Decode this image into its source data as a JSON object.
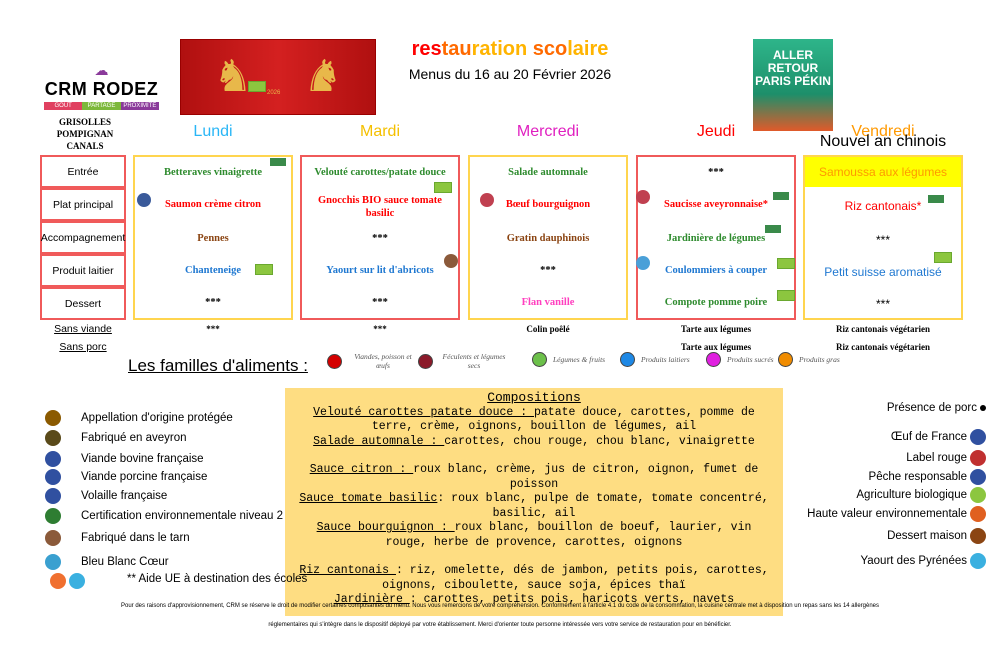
{
  "header": {
    "logo": {
      "name": "CRM RODEZ",
      "tags": [
        "GOUT",
        "PARTAGE",
        "PROXIMITÉ"
      ]
    },
    "title_parts": [
      {
        "t": "res",
        "c": "#ff0000"
      },
      {
        "t": "tau",
        "c": "#ff6a00"
      },
      {
        "t": "ration",
        "c": "#ffb400"
      },
      {
        "t": " ",
        "c": "#000"
      },
      {
        "t": "sco",
        "c": "#ff6a00"
      },
      {
        "t": "laire",
        "c": "#ffb400"
      }
    ],
    "subtitle": "Menus du 16 au 20 Février 2026",
    "banner_year": "2026",
    "poster_text": "ALLER RETOUR PARIS PÉKIN",
    "towns": [
      "GRISOLLES",
      "POMPIGNAN",
      "CANALS"
    ]
  },
  "rows": [
    "Entrée",
    "Plat principal",
    "Accompagnement",
    "Produit laitier",
    "Dessert"
  ],
  "alt_rows": [
    "Sans viande",
    "Sans porc"
  ],
  "days": [
    {
      "name": "Lundi",
      "color": "#29b6f6",
      "border": "#ffd54f",
      "items": [
        {
          "text": "Betteraves vinaigrette",
          "color": "#2e8b2e"
        },
        {
          "text": "Saumon crème citron",
          "color": "#ff0000"
        },
        {
          "text": "Pennes",
          "color": "#8b4513"
        },
        {
          "text": "Chanteneige",
          "color": "#1f78d1"
        },
        {
          "text": "***",
          "color": "#000"
        }
      ],
      "alt": [
        "***",
        ""
      ]
    },
    {
      "name": "Mardi",
      "color": "#f5c000",
      "border": "#f05a5a",
      "items": [
        {
          "text": "Velouté carottes/patate douce",
          "color": "#2e8b2e"
        },
        {
          "text": "Gnocchis BIO sauce tomate basilic",
          "color": "#ff0000"
        },
        {
          "text": "***",
          "color": "#000"
        },
        {
          "text": "Yaourt sur lit d'abricots",
          "color": "#1f78d1"
        },
        {
          "text": "***",
          "color": "#000"
        }
      ],
      "alt": [
        "***",
        ""
      ]
    },
    {
      "name": "Mercredi",
      "color": "#e020c0",
      "border": "#ffd54f",
      "items": [
        {
          "text": "Salade automnale",
          "color": "#2e8b2e"
        },
        {
          "text": "Bœuf bourguignon",
          "color": "#ff0000"
        },
        {
          "text": "Gratin dauphinois",
          "color": "#8b4513"
        },
        {
          "text": "***",
          "color": "#000"
        },
        {
          "text": "Flan vanille",
          "color": "#ff3fbf"
        }
      ],
      "alt": [
        "Colin poêlé",
        ""
      ]
    },
    {
      "name": "Jeudi",
      "color": "#ff0000",
      "border": "#f05a5a",
      "items": [
        {
          "text": "***",
          "color": "#000"
        },
        {
          "text": "Saucisse aveyronnaise*",
          "color": "#ff0000"
        },
        {
          "text": "Jardinière de légumes",
          "color": "#2e8b2e"
        },
        {
          "text": "Coulommiers à couper",
          "color": "#1f78d1"
        },
        {
          "text": "Compote pomme poire",
          "color": "#2e8b2e"
        }
      ],
      "alt": [
        "Tarte aux légumes",
        "Tarte aux légumes"
      ]
    },
    {
      "name": "Vendredi",
      "subtitle": "Nouvel an chinois",
      "color": "#ff9900",
      "border": "#ffd54f",
      "items": [
        {
          "text": "Samoussa aux légumes",
          "color": "#ff9900"
        },
        {
          "text": "Riz cantonais*",
          "color": "#ff0000"
        },
        {
          "text": "***",
          "color": "#000"
        },
        {
          "text": "Petit suisse aromatisé",
          "color": "#1f78d1"
        },
        {
          "text": "***",
          "color": "#000"
        }
      ],
      "alt": [
        "Riz cantonais végétarien",
        "Riz cantonais végétarien"
      ]
    }
  ],
  "families": {
    "title": "Les familles d'aliments :",
    "items": [
      {
        "label": "Viandes, poisson et œufs",
        "color": "#d40000"
      },
      {
        "label": "Féculents et légumes secs",
        "color": "#8b1a2a"
      },
      {
        "label": "Légumes & fruits",
        "color": "#6cc04a"
      },
      {
        "label": "Produits laitiers",
        "color": "#1e88e5"
      },
      {
        "label": "Produits sucrés",
        "color": "#e020e0"
      },
      {
        "label": "Produits gras",
        "color": "#f08c00"
      }
    ]
  },
  "compositions": {
    "title": "Compositions",
    "items": [
      {
        "name": "Velouté carottes patate douce : ",
        "desc": "patate douce, carottes, pomme de terre, crème, oignons, bouillon de légumes, ail"
      },
      {
        "name": "Salade automnale : ",
        "desc": "carottes, chou rouge, chou blanc, vinaigrette"
      },
      {
        "name": "Sauce citron : ",
        "desc": "roux blanc, crème, jus de citron, oignon, fumet de poisson",
        "gap": true
      },
      {
        "name": "Sauce tomate basilic",
        "desc": ": roux blanc, pulpe de tomate, tomate concentré, basilic, ail"
      },
      {
        "name": "Sauce bourguignon : ",
        "desc": "roux blanc, bouillon de boeuf, laurier, vin rouge, herbe de provence, carottes, oignons"
      },
      {
        "name": "Riz cantonais ",
        "desc": ": riz, omelette, dés de jambon,  petits pois, carottes, oignons, ciboulette, sauce soja, épices thaï",
        "gap": true
      },
      {
        "name": "Jardinière ",
        "desc": ": carottes, petits pois, haricots verts, navets"
      }
    ]
  },
  "legend_left": [
    {
      "label": "Appellation d'origine protégée",
      "icon": "aop-icon",
      "color": "#8b5a00"
    },
    {
      "label": "Fabriqué en aveyron",
      "icon": "aveyron-icon",
      "color": "#5a4a1a"
    },
    {
      "label": "Viande bovine française",
      "icon": "viande-bovine-icon",
      "color": "#3050a0"
    },
    {
      "label": "Viande porcine française",
      "icon": "viande-porcine-icon",
      "color": "#3050a0"
    },
    {
      "label": "Volaille française",
      "icon": "volaille-icon",
      "color": "#3050a0"
    },
    {
      "label": "Certification environnementale niveau 2",
      "icon": "cert-env-icon",
      "color": "#2e7d32"
    },
    {
      "label": "Fabriqué dans le tarn",
      "icon": "tarn-icon",
      "color": "#8b5a3a"
    },
    {
      "label": "Bleu Blanc Cœur",
      "icon": "bleu-blanc-coeur-icon",
      "color": "#3aa0d0"
    }
  ],
  "aide_ue": "** Aide UE à destination des écoles",
  "legend_right": [
    {
      "label": "Présence de porc",
      "icon": "star-icon",
      "color": "#000"
    },
    {
      "label": "Œuf de France",
      "icon": "oeuf-icon",
      "color": "#3050a0"
    },
    {
      "label": "Label rouge",
      "icon": "label-rouge-icon",
      "color": "#c03030"
    },
    {
      "label": "Pêche responsable",
      "icon": "peche-icon",
      "color": "#3050a0"
    },
    {
      "label": "Agriculture biologique",
      "icon": "bio-icon",
      "color": "#8cc63f"
    },
    {
      "label": "Haute valeur environnementale",
      "icon": "hve-icon",
      "color": "#e06020"
    },
    {
      "label": "Dessert maison",
      "icon": "cupcake-icon",
      "color": "#8b4513"
    },
    {
      "label": "Yaourt des Pyrénées",
      "icon": "yaourt-icon",
      "color": "#3ab0e0"
    }
  ],
  "footer": [
    "Pour des raisons d'approvisionnement, CRM se réserve le droit de modifier certaines composantes du menu. Nous vous remercions de votre compréhension. Conformément à l'article 4.1 du code de la consommation, la cuisine centrale met à disposition un repas sans les 14 allergènes",
    "réglementaires qui s'intègre dans le dispositif déployé par votre établissement. Merci d'orienter toute personne intéressée vers votre service de restauration pour en bénéficier."
  ]
}
